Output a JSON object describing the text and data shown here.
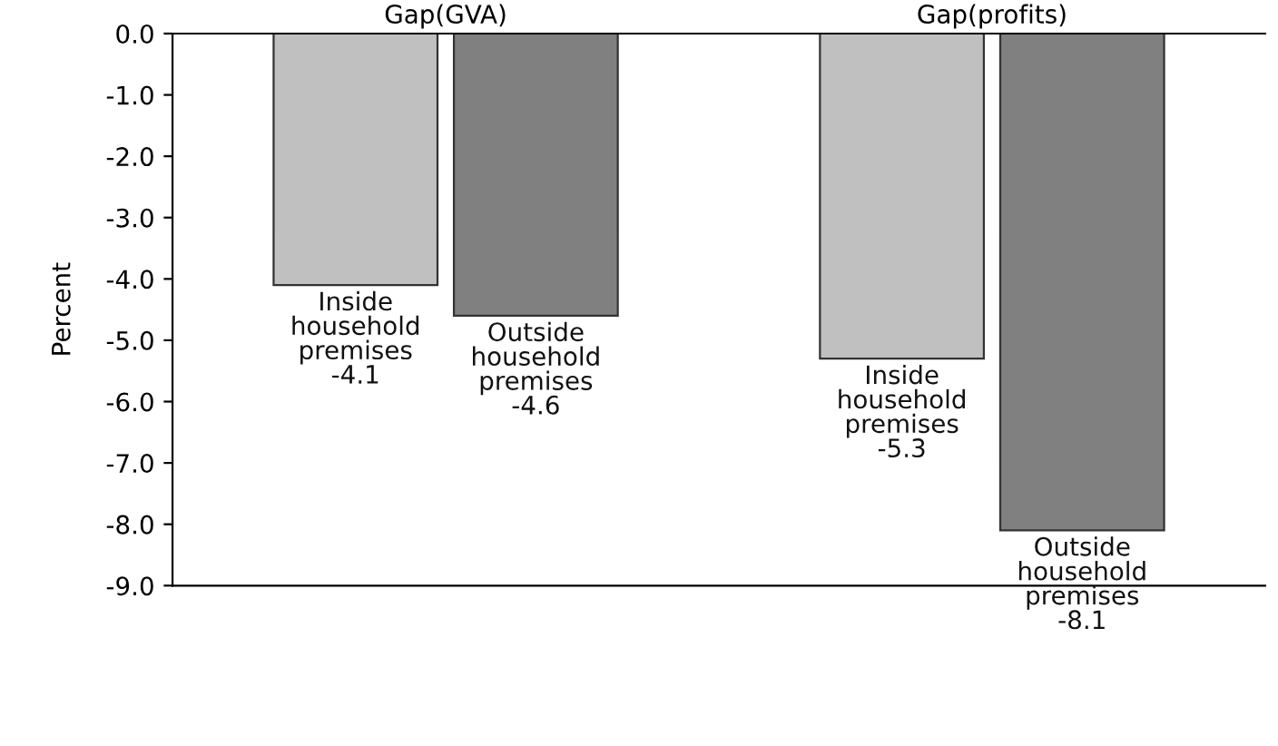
{
  "chart_data": {
    "type": "bar",
    "ylabel": "Percent",
    "categories": [
      "Gap(GVA)",
      "Gap(profits)"
    ],
    "series": [
      {
        "name": "Inside household premises",
        "color": "#c0c0c0",
        "values": [
          -4.1,
          -5.3
        ],
        "value_labels": [
          "-4.1",
          "-5.3"
        ]
      },
      {
        "name": "Outside household premises",
        "color": "#808080",
        "values": [
          -4.6,
          -8.1
        ],
        "value_labels": [
          "-4.6",
          "-8.1"
        ]
      }
    ],
    "ylim": [
      -9,
      0
    ],
    "yticks": [
      {
        "value": 0,
        "label": "0.0"
      },
      {
        "value": -1,
        "label": "-1.0"
      },
      {
        "value": -2,
        "label": "-2.0"
      },
      {
        "value": -3,
        "label": "-3.0"
      },
      {
        "value": -4,
        "label": "-4.0"
      },
      {
        "value": -5,
        "label": "-5.0"
      },
      {
        "value": -6,
        "label": "-6.0"
      },
      {
        "value": -7,
        "label": "-7.0"
      },
      {
        "value": -8,
        "label": "-8.0"
      },
      {
        "value": -9,
        "label": "-9.0"
      }
    ],
    "grid": false,
    "legend": false
  }
}
